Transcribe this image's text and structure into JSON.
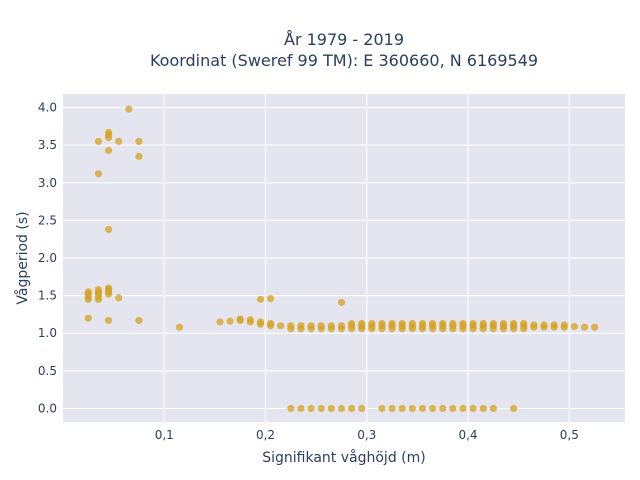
{
  "chart_data": {
    "type": "scatter",
    "title_line1": "År 1979 - 2019",
    "title_line2": "Koordinat (Sweref 99 TM): E 360660, N 6169549",
    "xlabel": "Signifikant våghöjd (m)",
    "ylabel": "Vågperiod (s)",
    "xlim": [
      0.0,
      0.555
    ],
    "ylim": [
      -0.18,
      4.18
    ],
    "grid": true,
    "x_ticks": [
      {
        "value": 0.1,
        "label": "0,1"
      },
      {
        "value": 0.2,
        "label": "0,2"
      },
      {
        "value": 0.3,
        "label": "0,3"
      },
      {
        "value": 0.4,
        "label": "0,4"
      },
      {
        "value": 0.5,
        "label": "0,5"
      }
    ],
    "y_ticks": [
      {
        "value": 0.0,
        "label": "0.0"
      },
      {
        "value": 0.5,
        "label": "0.5"
      },
      {
        "value": 1.0,
        "label": "1.0"
      },
      {
        "value": 1.5,
        "label": "1.5"
      },
      {
        "value": 2.0,
        "label": "2.0"
      },
      {
        "value": 2.5,
        "label": "2.5"
      },
      {
        "value": 3.0,
        "label": "3.0"
      },
      {
        "value": 3.5,
        "label": "3.5"
      },
      {
        "value": 4.0,
        "label": "4.0"
      }
    ],
    "colors": {
      "marker": "#d4a21f",
      "plot_bg": "#e5e5ef",
      "grid": "#ffffff",
      "text": "#2a3f5f"
    },
    "series": [
      {
        "points": [
          [
            0.025,
            1.45
          ],
          [
            0.025,
            1.48
          ],
          [
            0.025,
            1.52
          ],
          [
            0.025,
            1.55
          ],
          [
            0.025,
            1.2
          ],
          [
            0.035,
            1.45
          ],
          [
            0.035,
            1.48
          ],
          [
            0.035,
            1.52
          ],
          [
            0.035,
            1.55
          ],
          [
            0.035,
            1.58
          ],
          [
            0.035,
            3.55
          ],
          [
            0.035,
            3.12
          ],
          [
            0.045,
            1.52
          ],
          [
            0.045,
            1.55
          ],
          [
            0.045,
            1.58
          ],
          [
            0.045,
            1.6
          ],
          [
            0.045,
            1.17
          ],
          [
            0.045,
            3.6
          ],
          [
            0.045,
            3.64
          ],
          [
            0.045,
            3.67
          ],
          [
            0.045,
            3.43
          ],
          [
            0.045,
            2.38
          ],
          [
            0.055,
            3.55
          ],
          [
            0.055,
            1.47
          ],
          [
            0.065,
            3.98
          ],
          [
            0.075,
            3.55
          ],
          [
            0.075,
            3.35
          ],
          [
            0.075,
            1.17
          ],
          [
            0.115,
            1.08
          ],
          [
            0.155,
            1.15
          ],
          [
            0.165,
            1.16
          ],
          [
            0.175,
            1.17
          ],
          [
            0.175,
            1.19
          ],
          [
            0.185,
            1.15
          ],
          [
            0.185,
            1.18
          ],
          [
            0.195,
            1.12
          ],
          [
            0.195,
            1.15
          ],
          [
            0.195,
            1.45
          ],
          [
            0.205,
            1.1
          ],
          [
            0.205,
            1.13
          ],
          [
            0.205,
            1.46
          ],
          [
            0.215,
            1.1
          ],
          [
            0.225,
            1.06
          ],
          [
            0.225,
            1.1
          ],
          [
            0.225,
            0.0
          ],
          [
            0.235,
            1.06
          ],
          [
            0.235,
            1.1
          ],
          [
            0.235,
            0.0
          ],
          [
            0.245,
            1.06
          ],
          [
            0.245,
            1.1
          ],
          [
            0.245,
            0.0
          ],
          [
            0.255,
            1.06
          ],
          [
            0.255,
            1.1
          ],
          [
            0.255,
            0.0
          ],
          [
            0.265,
            1.06
          ],
          [
            0.265,
            1.1
          ],
          [
            0.265,
            0.0
          ],
          [
            0.275,
            1.06
          ],
          [
            0.275,
            1.1
          ],
          [
            0.275,
            1.41
          ],
          [
            0.275,
            0.0
          ],
          [
            0.285,
            1.06
          ],
          [
            0.285,
            1.1
          ],
          [
            0.285,
            1.13
          ],
          [
            0.285,
            0.0
          ],
          [
            0.295,
            1.06
          ],
          [
            0.295,
            1.1
          ],
          [
            0.295,
            1.13
          ],
          [
            0.295,
            0.0
          ],
          [
            0.305,
            1.06
          ],
          [
            0.305,
            1.1
          ],
          [
            0.305,
            1.13
          ],
          [
            0.315,
            1.06
          ],
          [
            0.315,
            1.1
          ],
          [
            0.315,
            1.13
          ],
          [
            0.315,
            0.0
          ],
          [
            0.325,
            1.06
          ],
          [
            0.325,
            1.1
          ],
          [
            0.325,
            1.13
          ],
          [
            0.325,
            0.0
          ],
          [
            0.335,
            1.06
          ],
          [
            0.335,
            1.1
          ],
          [
            0.335,
            1.13
          ],
          [
            0.335,
            0.0
          ],
          [
            0.345,
            1.06
          ],
          [
            0.345,
            1.1
          ],
          [
            0.345,
            1.13
          ],
          [
            0.345,
            0.0
          ],
          [
            0.355,
            1.06
          ],
          [
            0.355,
            1.1
          ],
          [
            0.355,
            1.13
          ],
          [
            0.355,
            0.0
          ],
          [
            0.365,
            1.06
          ],
          [
            0.365,
            1.1
          ],
          [
            0.365,
            1.13
          ],
          [
            0.365,
            0.0
          ],
          [
            0.375,
            1.06
          ],
          [
            0.375,
            1.1
          ],
          [
            0.375,
            1.13
          ],
          [
            0.375,
            0.0
          ],
          [
            0.385,
            1.06
          ],
          [
            0.385,
            1.1
          ],
          [
            0.385,
            1.13
          ],
          [
            0.385,
            0.0
          ],
          [
            0.395,
            1.06
          ],
          [
            0.395,
            1.1
          ],
          [
            0.395,
            1.13
          ],
          [
            0.395,
            0.0
          ],
          [
            0.405,
            1.06
          ],
          [
            0.405,
            1.1
          ],
          [
            0.405,
            1.13
          ],
          [
            0.405,
            0.0
          ],
          [
            0.415,
            1.06
          ],
          [
            0.415,
            1.1
          ],
          [
            0.415,
            1.13
          ],
          [
            0.415,
            0.0
          ],
          [
            0.425,
            1.06
          ],
          [
            0.425,
            1.1
          ],
          [
            0.425,
            1.13
          ],
          [
            0.425,
            0.0
          ],
          [
            0.435,
            1.06
          ],
          [
            0.435,
            1.1
          ],
          [
            0.435,
            1.13
          ],
          [
            0.445,
            1.06
          ],
          [
            0.445,
            1.1
          ],
          [
            0.445,
            1.13
          ],
          [
            0.445,
            0.0
          ],
          [
            0.455,
            1.06
          ],
          [
            0.455,
            1.1
          ],
          [
            0.455,
            1.13
          ],
          [
            0.465,
            1.08
          ],
          [
            0.465,
            1.11
          ],
          [
            0.475,
            1.08
          ],
          [
            0.475,
            1.11
          ],
          [
            0.485,
            1.08
          ],
          [
            0.485,
            1.11
          ],
          [
            0.495,
            1.08
          ],
          [
            0.495,
            1.11
          ],
          [
            0.505,
            1.09
          ],
          [
            0.515,
            1.08
          ],
          [
            0.525,
            1.08
          ]
        ]
      }
    ]
  }
}
